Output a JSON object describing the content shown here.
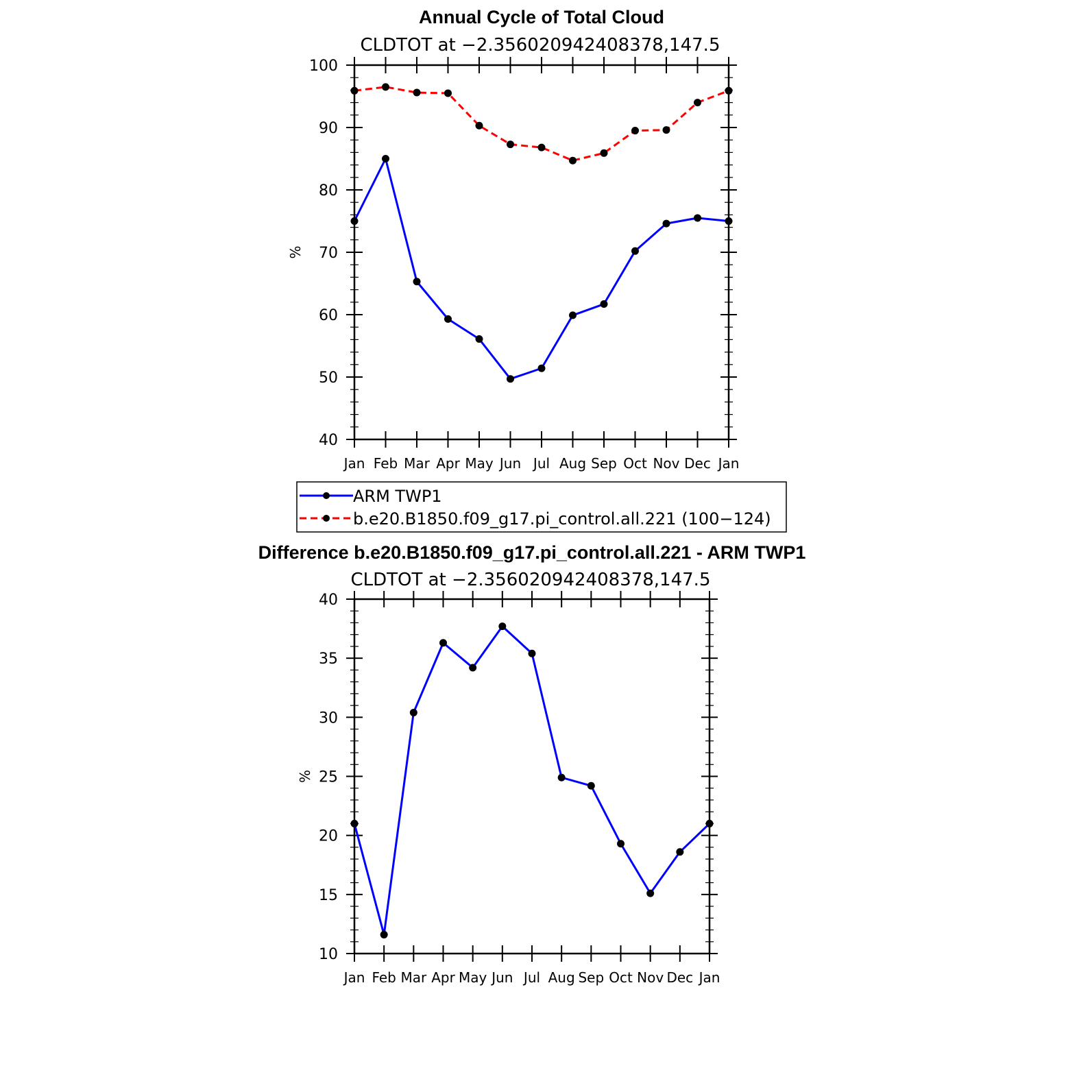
{
  "top_panel": {
    "title": "Annual Cycle of Total Cloud",
    "subtitle": "CLDTOT at −2.356020942408378,147.5"
  },
  "bottom_panel": {
    "title": "Difference b.e20.B1850.f09_g17.pi_control.all.221 - ARM TWP1",
    "subtitle": "CLDTOT at −2.356020942408378,147.5"
  },
  "legend": {
    "entries": [
      "ARM TWP1",
      "b.e20.B1850.f09_g17.pi_control.all.221 (100−124)"
    ]
  },
  "chart_data": [
    {
      "type": "line",
      "title": "Annual Cycle of Total Cloud",
      "subtitle": "CLDTOT at −2.356020942408378,147.5",
      "xlabel": "",
      "ylabel": "%",
      "categories": [
        "Jan",
        "Feb",
        "Mar",
        "Apr",
        "May",
        "Jun",
        "Jul",
        "Aug",
        "Sep",
        "Oct",
        "Nov",
        "Dec",
        "Jan"
      ],
      "ylim": [
        40,
        100
      ],
      "yticks": [
        40,
        50,
        60,
        70,
        80,
        90,
        100
      ],
      "grid": false,
      "legend_position": "bottom",
      "series": [
        {
          "name": "ARM TWP1",
          "color": "#0000ff",
          "style": "solid",
          "marker": "dot",
          "values": [
            75.0,
            85.0,
            65.3,
            59.3,
            56.1,
            49.7,
            51.4,
            59.9,
            61.7,
            70.2,
            74.6,
            75.5,
            75.0
          ]
        },
        {
          "name": "b.e20.B1850.f09_g17.pi_control.all.221 (100−124)",
          "color": "#ff0000",
          "style": "dashed",
          "marker": "dot",
          "values": [
            95.9,
            96.5,
            95.6,
            95.5,
            90.3,
            87.3,
            86.8,
            84.7,
            85.9,
            89.5,
            89.6,
            94.0,
            95.9
          ]
        }
      ]
    },
    {
      "type": "line",
      "title": "Difference b.e20.B1850.f09_g17.pi_control.all.221 - ARM TWP1",
      "subtitle": "CLDTOT at −2.356020942408378,147.5",
      "xlabel": "",
      "ylabel": "%",
      "categories": [
        "Jan",
        "Feb",
        "Mar",
        "Apr",
        "May",
        "Jun",
        "Jul",
        "Aug",
        "Sep",
        "Oct",
        "Nov",
        "Dec",
        "Jan"
      ],
      "ylim": [
        10,
        40
      ],
      "yticks": [
        10,
        15,
        20,
        25,
        30,
        35,
        40
      ],
      "grid": false,
      "series": [
        {
          "color": "#0000ff",
          "style": "solid",
          "marker": "dot",
          "values": [
            21.0,
            11.6,
            30.4,
            36.3,
            34.2,
            37.7,
            35.4,
            24.9,
            24.2,
            19.3,
            15.1,
            18.6,
            21.0
          ]
        }
      ]
    }
  ]
}
